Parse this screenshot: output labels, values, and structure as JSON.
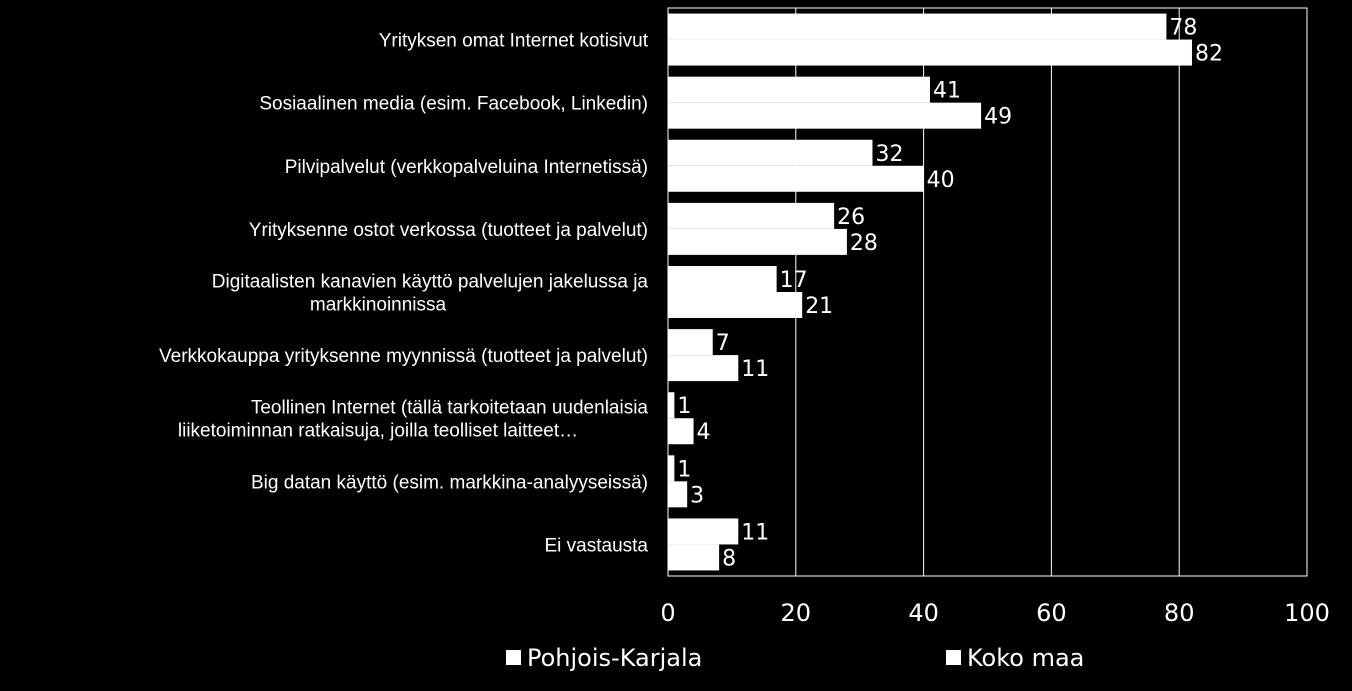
{
  "chart_data": {
    "type": "bar",
    "orientation": "horizontal",
    "categories": [
      [
        "Yrityksen omat Internet kotisivut"
      ],
      [
        "Sosiaalinen media (esim. Facebook, Linkedin)"
      ],
      [
        "Pilvipalvelut  (verkkopalveluina Internetissä)"
      ],
      [
        "Yrityksenne ostot verkossa (tuotteet ja palvelut)"
      ],
      [
        "Digitaalisten kanavien käyttö palvelujen jakelussa ja",
        "markkinoinnissa"
      ],
      [
        "Verkkokauppa yrityksenne myynnissä (tuotteet ja palvelut)"
      ],
      [
        "Teollinen Internet (tällä tarkoitetaan uudenlaisia",
        "liiketoiminnan ratkaisuja, joilla teolliset laitteet…"
      ],
      [
        "Big datan käyttö (esim. markkina-analyyseissä)"
      ],
      [
        "Ei vastausta"
      ]
    ],
    "series": [
      {
        "name": "Pohjois-Karjala",
        "values": [
          78,
          41,
          32,
          26,
          17,
          7,
          1,
          1,
          11
        ]
      },
      {
        "name": "Koko maa",
        "values": [
          82,
          49,
          40,
          28,
          21,
          11,
          4,
          3,
          8
        ]
      }
    ],
    "xlim": [
      0,
      100
    ],
    "xticks": [
      0,
      20,
      40,
      60,
      80,
      100
    ],
    "grid": true,
    "legend_position": "bottom",
    "colors": {
      "background": "#000000",
      "bar": "#ffffff",
      "text": "#ffffff",
      "grid": "#ffffff"
    }
  }
}
